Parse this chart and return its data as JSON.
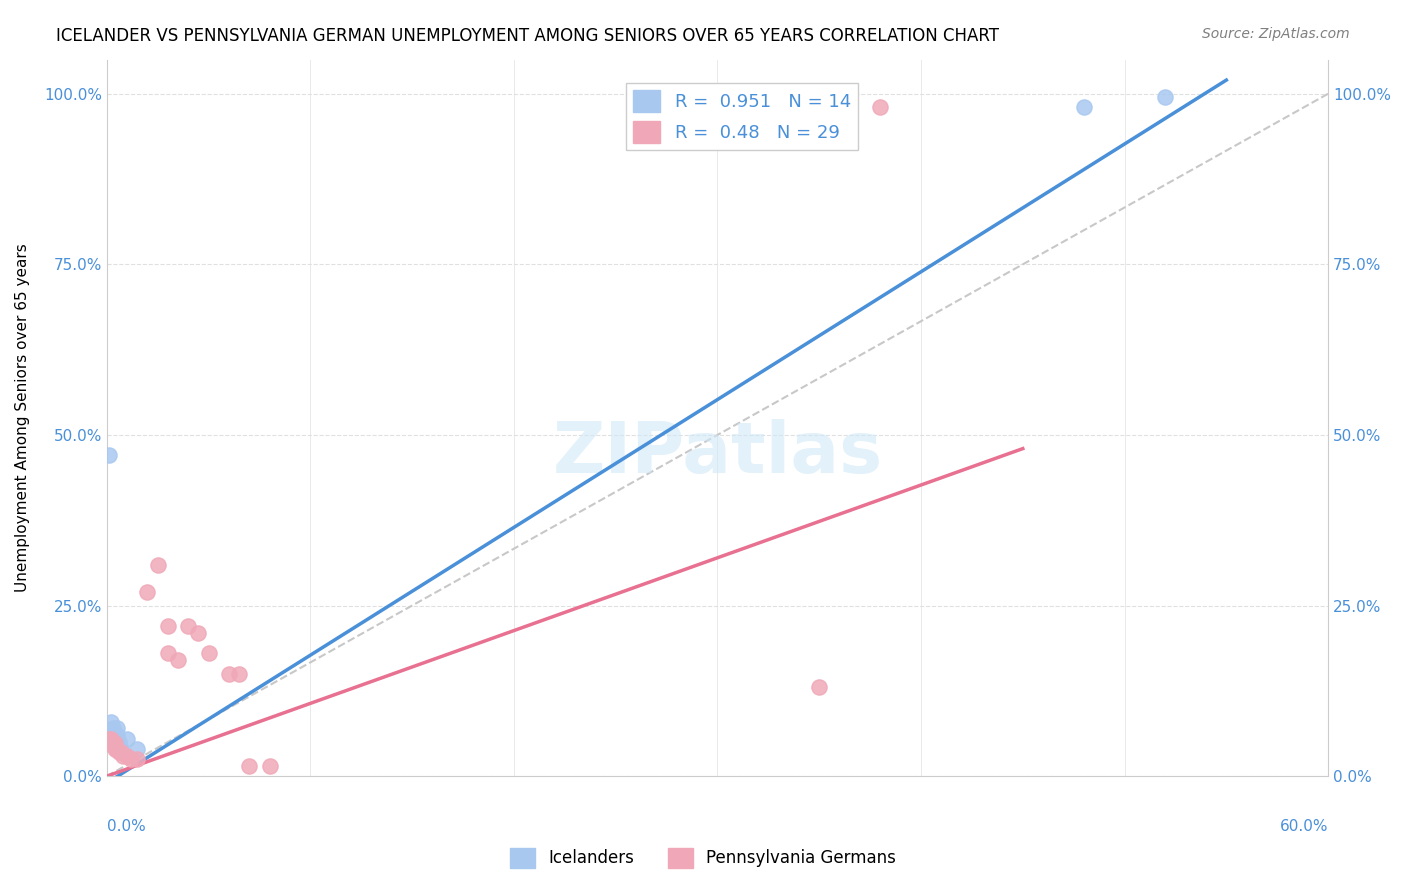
{
  "title": "ICELANDER VS PENNSYLVANIA GERMAN UNEMPLOYMENT AMONG SENIORS OVER 65 YEARS CORRELATION CHART",
  "source": "Source: ZipAtlas.com",
  "xlabel_bottom_left": "0.0%",
  "xlabel_bottom_right": "60.0%",
  "ylabel": "Unemployment Among Seniors over 65 years",
  "ytick_labels": [
    "0.0%",
    "25.0%",
    "50.0%",
    "75.0%",
    "100.0%"
  ],
  "ytick_values": [
    0.0,
    0.25,
    0.5,
    0.75,
    1.0
  ],
  "xmin": 0.0,
  "xmax": 0.6,
  "ymin": 0.0,
  "ymax": 1.05,
  "icelander_color": "#a8c8f0",
  "pennsylvania_color": "#f0a8b8",
  "icelander_R": 0.951,
  "icelander_N": 14,
  "pennsylvania_R": 0.48,
  "pennsylvania_N": 29,
  "icelander_line_color": "#4a90d9",
  "pennsylvania_line_color": "#e87090",
  "diagonal_color": "#c8c8c8",
  "watermark": "ZIPatlas",
  "legend_label_1": "Icelanders",
  "legend_label_2": "Pennsylvania Germans",
  "icelander_points": [
    [
      0.001,
      0.47
    ],
    [
      0.002,
      0.08
    ],
    [
      0.003,
      0.07
    ],
    [
      0.003,
      0.065
    ],
    [
      0.004,
      0.06
    ],
    [
      0.004,
      0.055
    ],
    [
      0.005,
      0.07
    ],
    [
      0.005,
      0.06
    ],
    [
      0.006,
      0.05
    ],
    [
      0.007,
      0.04
    ],
    [
      0.01,
      0.055
    ],
    [
      0.015,
      0.04
    ],
    [
      0.48,
      0.98
    ],
    [
      0.52,
      0.995
    ]
  ],
  "pennsylvania_points": [
    [
      0.001,
      0.055
    ],
    [
      0.002,
      0.055
    ],
    [
      0.002,
      0.05
    ],
    [
      0.003,
      0.05
    ],
    [
      0.003,
      0.045
    ],
    [
      0.004,
      0.048
    ],
    [
      0.004,
      0.04
    ],
    [
      0.005,
      0.04
    ],
    [
      0.005,
      0.038
    ],
    [
      0.006,
      0.035
    ],
    [
      0.007,
      0.035
    ],
    [
      0.008,
      0.03
    ],
    [
      0.01,
      0.03
    ],
    [
      0.012,
      0.025
    ],
    [
      0.015,
      0.025
    ],
    [
      0.02,
      0.27
    ],
    [
      0.025,
      0.31
    ],
    [
      0.03,
      0.22
    ],
    [
      0.03,
      0.18
    ],
    [
      0.035,
      0.17
    ],
    [
      0.04,
      0.22
    ],
    [
      0.045,
      0.21
    ],
    [
      0.05,
      0.18
    ],
    [
      0.06,
      0.15
    ],
    [
      0.065,
      0.15
    ],
    [
      0.07,
      0.015
    ],
    [
      0.08,
      0.015
    ],
    [
      0.35,
      0.13
    ],
    [
      0.38,
      0.98
    ]
  ],
  "icelander_line": [
    [
      0.0,
      -0.01
    ],
    [
      0.55,
      1.02
    ]
  ],
  "pennsylvania_line": [
    [
      0.0,
      0.0
    ],
    [
      0.45,
      0.48
    ]
  ],
  "diagonal_line": [
    [
      0.0,
      0.0
    ],
    [
      0.6,
      1.0
    ]
  ]
}
